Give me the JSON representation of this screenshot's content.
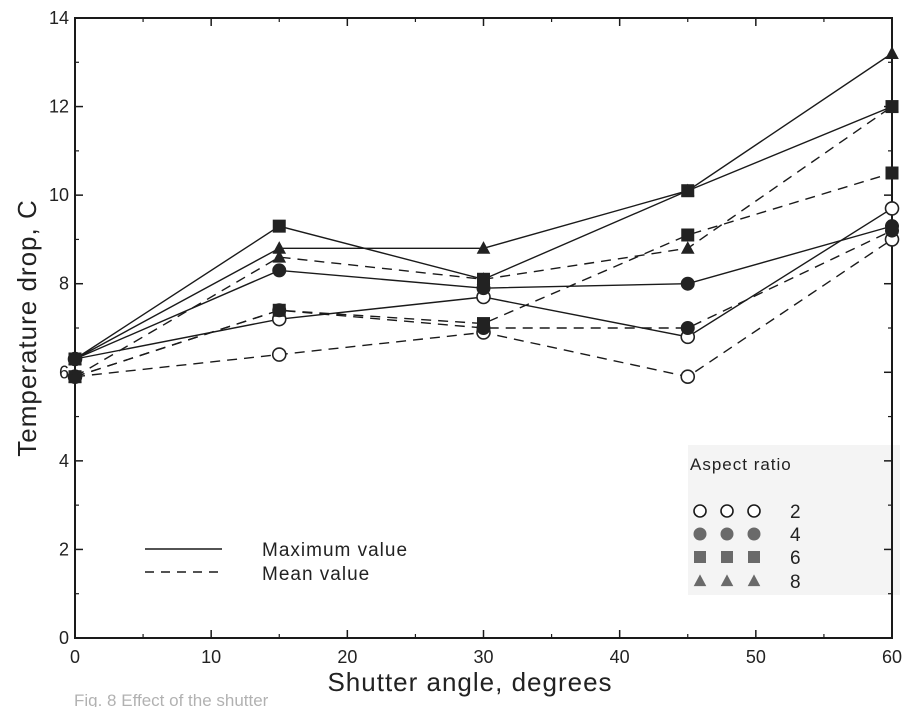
{
  "chart_data": {
    "type": "line",
    "xlabel": "Shutter angle, degrees",
    "ylabel": "Temperature drop, C",
    "xlim": [
      0,
      60
    ],
    "ylim": [
      0,
      14
    ],
    "xticks": [
      "0",
      "10",
      "20",
      "30",
      "40",
      "50",
      "60"
    ],
    "yticks": [
      "0",
      "2",
      "4",
      "6",
      "8",
      "10",
      "12",
      "14"
    ],
    "grid": false,
    "x": [
      0,
      15,
      30,
      45,
      60
    ],
    "series": [
      {
        "aspect_ratio": "2",
        "marker": "open-circle",
        "line": "solid",
        "values": [
          6.3,
          7.2,
          7.7,
          6.8,
          9.7
        ]
      },
      {
        "aspect_ratio": "4",
        "marker": "filled-circle",
        "line": "solid",
        "values": [
          6.3,
          8.3,
          7.9,
          8.0,
          9.3
        ]
      },
      {
        "aspect_ratio": "6",
        "marker": "filled-square",
        "line": "solid",
        "values": [
          6.3,
          9.3,
          8.1,
          10.1,
          12.0
        ]
      },
      {
        "aspect_ratio": "8",
        "marker": "filled-triangle",
        "line": "solid",
        "values": [
          6.3,
          8.8,
          8.8,
          10.1,
          13.2
        ]
      },
      {
        "aspect_ratio": "2",
        "marker": "open-circle",
        "line": "dashed",
        "values": [
          5.9,
          6.4,
          6.9,
          5.9,
          9.0
        ]
      },
      {
        "aspect_ratio": "4",
        "marker": "filled-circle",
        "line": "dashed",
        "values": [
          5.9,
          7.4,
          7.0,
          7.0,
          9.2
        ]
      },
      {
        "aspect_ratio": "6",
        "marker": "filled-square",
        "line": "dashed",
        "values": [
          5.9,
          7.4,
          7.1,
          9.1,
          10.5
        ]
      },
      {
        "aspect_ratio": "8",
        "marker": "filled-triangle",
        "line": "dashed",
        "values": [
          5.9,
          8.6,
          8.1,
          8.8,
          12.0
        ]
      }
    ],
    "line_styles_legend": {
      "entries": [
        {
          "style": "solid",
          "label": "Maximum value"
        },
        {
          "style": "dashed",
          "label": "Mean value"
        }
      ]
    },
    "marker_legend": {
      "title": "Aspect ratio",
      "entries": [
        {
          "marker": "open-circle",
          "label": "2"
        },
        {
          "marker": "filled-circle",
          "label": "4"
        },
        {
          "marker": "filled-square",
          "label": "6"
        },
        {
          "marker": "filled-triangle",
          "label": "8"
        }
      ]
    }
  },
  "caption_fragment": "Fig. 8  Effect of the shutter",
  "colors": {
    "ink": "#1a1a1a",
    "marker_fill": "#222222",
    "legend_marker": "#6a6a6a",
    "legend_panel": "#f4f4f4"
  }
}
